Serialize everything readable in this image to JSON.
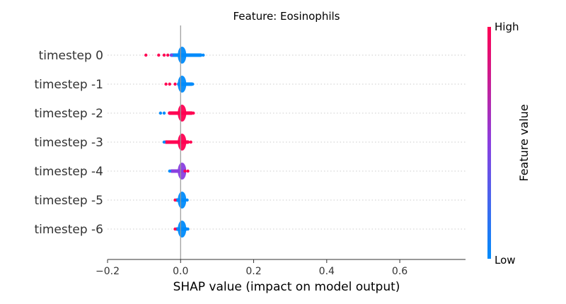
{
  "chart_data": {
    "type": "scatter",
    "subtype": "shap-beeswarm",
    "title": "Feature: Eosinophils",
    "xlabel": "SHAP value (impact on model output)",
    "xlim": [
      -0.2,
      0.78
    ],
    "xticks": [
      -0.2,
      0.0,
      0.2,
      0.4,
      0.6
    ],
    "xtick_labels": [
      "−0.2",
      "0.0",
      "0.2",
      "0.4",
      "0.6"
    ],
    "colorbar": {
      "title": "Feature value",
      "high_label": "High",
      "low_label": "Low",
      "high_color": "#ff0052",
      "mid_color": "#8a3fe0",
      "low_color": "#008bfb"
    },
    "rows": [
      {
        "label": "timestep 0",
        "body": {
          "min": -0.03,
          "max": 0.06,
          "color": "#008bfb"
        },
        "points": [
          {
            "x": -0.095,
            "v": "high"
          },
          {
            "x": -0.06,
            "v": "high"
          },
          {
            "x": -0.045,
            "v": "high"
          },
          {
            "x": -0.035,
            "v": "high"
          },
          {
            "x": -0.025,
            "v": "mid"
          },
          {
            "x": 0.062,
            "v": "low"
          }
        ]
      },
      {
        "label": "timestep -1",
        "body": {
          "min": -0.01,
          "max": 0.035,
          "color": "#008bfb"
        },
        "points": [
          {
            "x": -0.04,
            "v": "high"
          },
          {
            "x": -0.03,
            "v": "high"
          },
          {
            "x": -0.015,
            "v": "high"
          },
          {
            "x": 0.033,
            "v": "low"
          }
        ]
      },
      {
        "label": "timestep -2",
        "body": {
          "min": -0.035,
          "max": 0.035,
          "color": "#ff0052"
        },
        "points": [
          {
            "x": -0.055,
            "v": "low"
          },
          {
            "x": -0.045,
            "v": "low"
          },
          {
            "x": 0.035,
            "v": "high"
          }
        ]
      },
      {
        "label": "timestep -3",
        "body": {
          "min": -0.045,
          "max": 0.025,
          "color": "#ff0052"
        },
        "points": [
          {
            "x": -0.045,
            "v": "low"
          },
          {
            "x": 0.028,
            "v": "high"
          }
        ]
      },
      {
        "label": "timestep -4",
        "body": {
          "min": -0.03,
          "max": 0.01,
          "color": "#8a3fe0"
        },
        "points": [
          {
            "x": -0.03,
            "v": "low"
          },
          {
            "x": 0.012,
            "v": "high"
          },
          {
            "x": 0.02,
            "v": "high"
          }
        ]
      },
      {
        "label": "timestep -5",
        "body": {
          "min": -0.015,
          "max": 0.015,
          "color": "#008bfb"
        },
        "points": [
          {
            "x": -0.015,
            "v": "high"
          },
          {
            "x": 0.018,
            "v": "low"
          }
        ]
      },
      {
        "label": "timestep -6",
        "body": {
          "min": -0.015,
          "max": 0.02,
          "color": "#008bfb"
        },
        "points": [
          {
            "x": -0.015,
            "v": "high"
          },
          {
            "x": 0.02,
            "v": "low"
          }
        ]
      }
    ]
  }
}
